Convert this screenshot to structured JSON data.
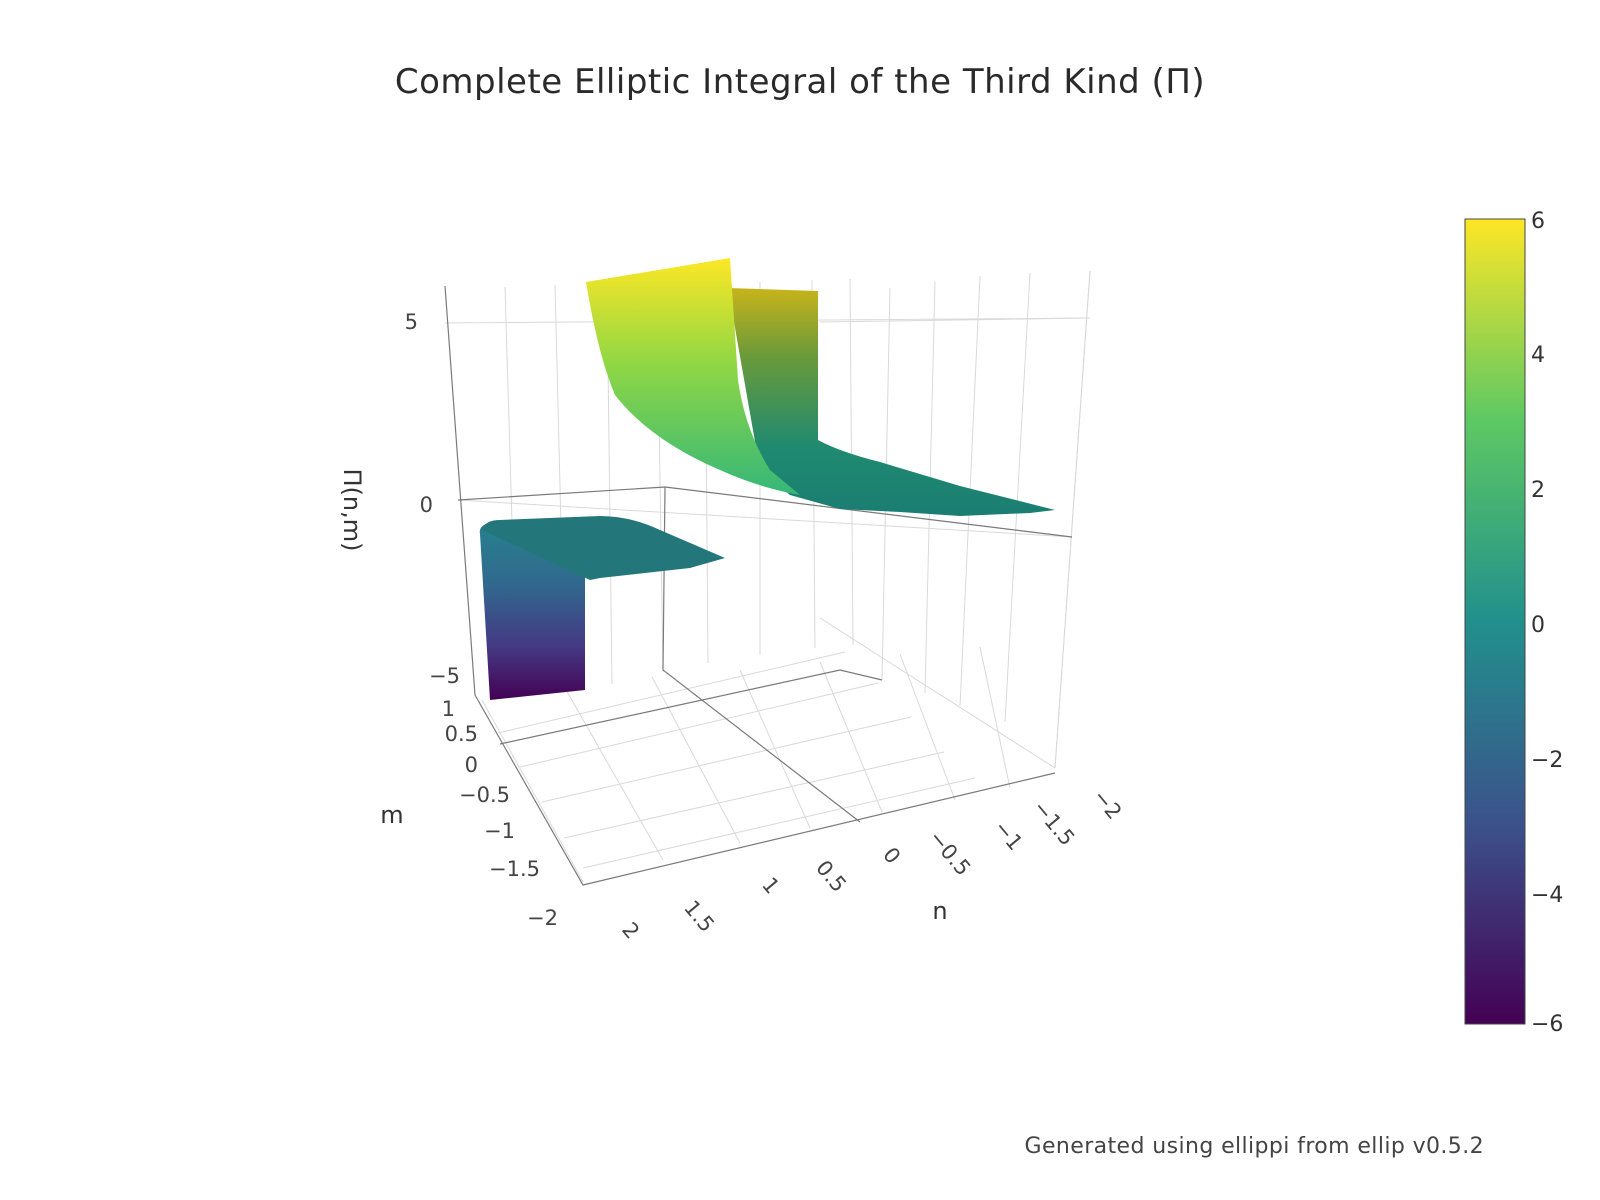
{
  "chart_data": {
    "type": "surface3d",
    "title": "Complete Elliptic Integral of the Third Kind (Π)",
    "x_axis": {
      "label": "n",
      "range": [
        -2,
        2
      ],
      "ticks": [
        "−2",
        "−1.5",
        "−1",
        "−0.5",
        "0",
        "0.5",
        "1",
        "1.5",
        "2"
      ]
    },
    "y_axis": {
      "label": "m",
      "range": [
        -2,
        1
      ],
      "ticks": [
        "−2",
        "−1.5",
        "−1",
        "−0.5",
        "0",
        "0.5",
        "1"
      ]
    },
    "z_axis": {
      "label": "Π(n,m)",
      "ticks": [
        "−5",
        "0",
        "5"
      ]
    },
    "colorscale": {
      "name": "viridis",
      "range": [
        -6,
        6
      ],
      "ticks": [
        "6",
        "4",
        "2",
        "0",
        "−2",
        "−4",
        "−6"
      ],
      "colors": [
        "#440154",
        "#3b528b",
        "#21908c",
        "#5dc863",
        "#fde725"
      ]
    },
    "grid": true,
    "colorbar_position": "right"
  },
  "footer": "Generated using ellippi from ellip v0.5.2"
}
